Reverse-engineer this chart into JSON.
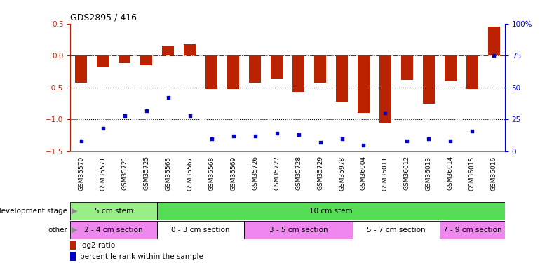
{
  "title": "GDS2895 / 416",
  "samples": [
    "GSM35570",
    "GSM35571",
    "GSM35721",
    "GSM35725",
    "GSM35565",
    "GSM35567",
    "GSM35568",
    "GSM35569",
    "GSM35726",
    "GSM35727",
    "GSM35728",
    "GSM35729",
    "GSM35978",
    "GSM36004",
    "GSM36011",
    "GSM36012",
    "GSM36013",
    "GSM36014",
    "GSM36015",
    "GSM36016"
  ],
  "log2_ratio": [
    -0.42,
    -0.18,
    -0.12,
    -0.15,
    0.16,
    0.18,
    -0.52,
    -0.52,
    -0.42,
    -0.36,
    -0.57,
    -0.42,
    -0.72,
    -0.9,
    -1.05,
    -0.38,
    -0.75,
    -0.4,
    -0.52,
    0.45
  ],
  "percentile": [
    8,
    18,
    28,
    32,
    42,
    28,
    10,
    12,
    12,
    14,
    13,
    7,
    10,
    5,
    30,
    8,
    10,
    8,
    16,
    75
  ],
  "bar_color": "#bb2200",
  "dot_color": "#0000cc",
  "ylim_left": [
    -1.5,
    0.5
  ],
  "ylim_right": [
    0,
    100
  ],
  "hline_zero_color": "#cc0000",
  "hline_other_color": "#000000",
  "dev_stage_groups": [
    {
      "label": "5 cm stem",
      "start": 0,
      "end": 4,
      "color": "#99ee88"
    },
    {
      "label": "10 cm stem",
      "start": 4,
      "end": 20,
      "color": "#55dd55"
    }
  ],
  "other_groups": [
    {
      "label": "2 - 4 cm section",
      "start": 0,
      "end": 4,
      "color": "#ee88ee"
    },
    {
      "label": "0 - 3 cm section",
      "start": 4,
      "end": 8,
      "color": "#ffffff"
    },
    {
      "label": "3 - 5 cm section",
      "start": 8,
      "end": 13,
      "color": "#ee88ee"
    },
    {
      "label": "5 - 7 cm section",
      "start": 13,
      "end": 17,
      "color": "#ffffff"
    },
    {
      "label": "7 - 9 cm section",
      "start": 17,
      "end": 20,
      "color": "#ee88ee"
    }
  ],
  "dev_stage_label": "development stage",
  "other_label": "other",
  "legend_bar_label": "log2 ratio",
  "legend_dot_label": "percentile rank within the sample",
  "yticks_left": [
    -1.5,
    -1.0,
    -0.5,
    0.0,
    0.5
  ],
  "yticks_right": [
    0,
    25,
    50,
    75,
    100
  ],
  "background_color": "#ffffff"
}
